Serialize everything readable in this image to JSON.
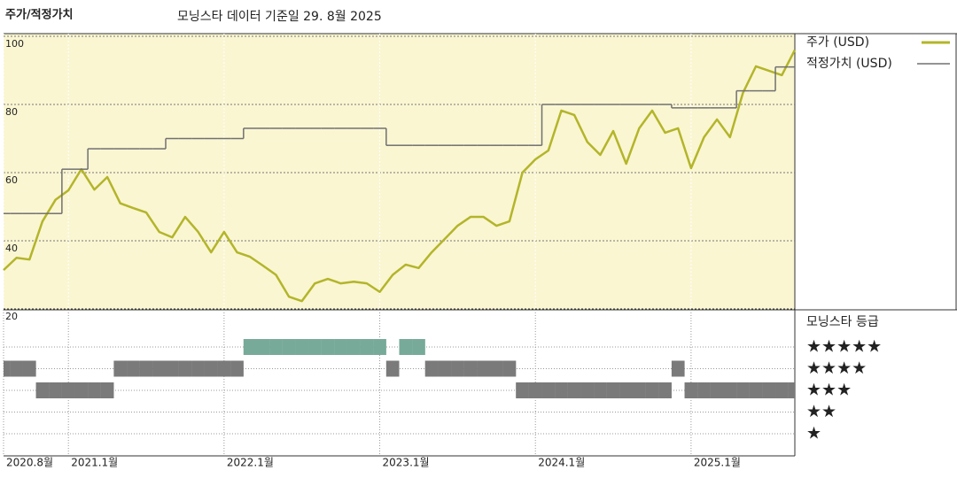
{
  "chart_data": [
    {
      "type": "line",
      "title": "주가/적정가치",
      "subtitle": "모닝스타 데이터 기준일 29. 8월 2025",
      "x": [
        "2020-08",
        "2020-09",
        "2020-10",
        "2020-11",
        "2020-12",
        "2021-01",
        "2021-02",
        "2021-03",
        "2021-04",
        "2021-05",
        "2021-06",
        "2021-07",
        "2021-08",
        "2021-09",
        "2021-10",
        "2021-11",
        "2021-12",
        "2022-01",
        "2022-02",
        "2022-03",
        "2022-04",
        "2022-05",
        "2022-06",
        "2022-07",
        "2022-08",
        "2022-09",
        "2022-10",
        "2022-11",
        "2022-12",
        "2023-01",
        "2023-02",
        "2023-03",
        "2023-04",
        "2023-05",
        "2023-06",
        "2023-07",
        "2023-08",
        "2023-09",
        "2023-10",
        "2023-11",
        "2023-12",
        "2024-01",
        "2024-02",
        "2024-03",
        "2024-04",
        "2024-05",
        "2024-06",
        "2024-07",
        "2024-08",
        "2024-09",
        "2024-10",
        "2024-11",
        "2024-12",
        "2025-01",
        "2025-02",
        "2025-03",
        "2025-04",
        "2025-05",
        "2025-06",
        "2025-07",
        "2025-08",
        "2025-09"
      ],
      "series": [
        {
          "name": "주가 (USD)",
          "color": "#b3b52a",
          "style": "line",
          "values": [
            31.4,
            35,
            34.5,
            45.7,
            52,
            54.8,
            61,
            55,
            58.7,
            51,
            49.6,
            48.3,
            42.6,
            41,
            47,
            42.6,
            36.6,
            42.6,
            36.6,
            35.3,
            32.7,
            30,
            23.6,
            22.3,
            27.5,
            28.8,
            27.5,
            28,
            27.5,
            25,
            30,
            33,
            32,
            36.6,
            40.5,
            44.4,
            47,
            47,
            44.4,
            45.7,
            60,
            63.9,
            66.5,
            78.2,
            76.9,
            69,
            65.2,
            72.2,
            62.6,
            73,
            78.2,
            71.7,
            73,
            61.3,
            70.4,
            75.6,
            70.4,
            83.4,
            91.2,
            89.9,
            88.6,
            96
          ]
        },
        {
          "name": "적정가치 (USD)",
          "color": "#707070",
          "style": "step",
          "values": [
            48,
            48,
            48,
            48,
            48,
            61,
            61,
            67,
            67,
            67,
            67,
            67,
            67,
            70,
            70,
            70,
            70,
            70,
            70,
            73,
            73,
            73,
            73,
            73,
            73,
            73,
            73,
            73,
            73,
            73,
            68,
            68,
            68,
            68,
            68,
            68,
            68,
            68,
            68,
            68,
            68,
            68,
            80,
            80,
            80,
            80,
            80,
            80,
            80,
            80,
            80,
            80,
            79,
            79,
            79,
            79,
            79,
            84,
            84,
            84,
            91,
            91
          ]
        }
      ],
      "xlim": [
        "2020-08",
        "2025-09"
      ],
      "xticks": [
        {
          "value": "2020-08",
          "label": "2020.8월"
        },
        {
          "value": "2021-01",
          "label": "2021.1월"
        },
        {
          "value": "2022-01",
          "label": "2022.1월"
        },
        {
          "value": "2023-01",
          "label": "2023.1월"
        },
        {
          "value": "2024-01",
          "label": "2024.1월"
        },
        {
          "value": "2025-01",
          "label": "2025.1월"
        }
      ],
      "ylim": [
        20,
        100
      ],
      "yticks": [
        20,
        40,
        60,
        80,
        100
      ],
      "grid": true
    },
    {
      "type": "rating",
      "title": "모닝스타 등급",
      "values": [
        4,
        4,
        4,
        3,
        3,
        3,
        3,
        3,
        3,
        4,
        4,
        4,
        4,
        4,
        4,
        4,
        4,
        4,
        4,
        5,
        5,
        5,
        5,
        5,
        5,
        5,
        5,
        5,
        5,
        5,
        4,
        5,
        5,
        4,
        4,
        4,
        4,
        4,
        4,
        4,
        3,
        3,
        3,
        3,
        3,
        3,
        3,
        3,
        3,
        3,
        3,
        3,
        4,
        3,
        3,
        3,
        3,
        3,
        3,
        3,
        3,
        3
      ],
      "colors": {
        "5": "#2e7d62",
        "other": "#333333"
      },
      "ylim": [
        1,
        5
      ],
      "yticks": [
        {
          "value": 5,
          "label": "★★★★★"
        },
        {
          "value": 4,
          "label": "★★★★"
        },
        {
          "value": 3,
          "label": "★★★"
        },
        {
          "value": 2,
          "label": "★★"
        },
        {
          "value": 1,
          "label": "★"
        }
      ]
    }
  ]
}
